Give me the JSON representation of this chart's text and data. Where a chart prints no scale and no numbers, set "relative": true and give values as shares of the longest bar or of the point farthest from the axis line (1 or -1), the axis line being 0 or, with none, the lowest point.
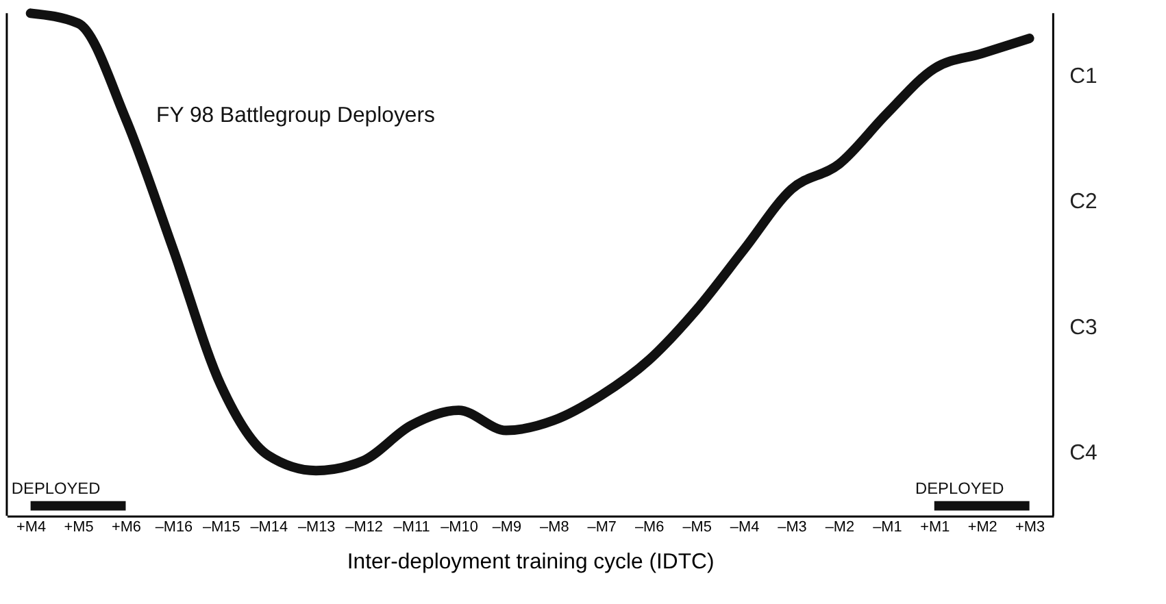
{
  "chart_data": {
    "type": "line",
    "relative": true,
    "xlabel": "Inter-deployment training cycle (IDTC)",
    "annotations": [
      "FY 98 Battlegroup Deployers",
      "C1",
      "C2",
      "C3",
      "C4"
    ],
    "categories": [
      "+M4",
      "+M5",
      "+M6",
      "–M16",
      "–M15",
      "–M14",
      "–M13",
      "–M12",
      "–M11",
      "–M10",
      "–M9",
      "–M8",
      "–M7",
      "–M6",
      "–M5",
      "–M4",
      "–M3",
      "–M2",
      "–M1",
      "+M1",
      "+M2",
      "+M3"
    ],
    "series": [
      {
        "color": "#111111",
        "values": [
          1.0,
          0.98,
          0.79,
          0.53,
          0.26,
          0.12,
          0.09,
          0.11,
          0.18,
          0.21,
          0.17,
          0.19,
          0.24,
          0.31,
          0.41,
          0.53,
          0.65,
          0.7,
          0.8,
          0.89,
          0.92,
          0.95
        ]
      },
      {
        "name": "DEPLOYED",
        "color": "#111111",
        "values": [
          0.02,
          0.02,
          0.02,
          null,
          null,
          null,
          null,
          null,
          null,
          null,
          null,
          null,
          null,
          null,
          null,
          null,
          null,
          null,
          null,
          null,
          null,
          null
        ]
      },
      {
        "name": "DEPLOYED",
        "color": "#111111",
        "values": [
          null,
          null,
          null,
          null,
          null,
          null,
          null,
          null,
          null,
          null,
          null,
          null,
          null,
          null,
          null,
          null,
          null,
          null,
          null,
          0.02,
          0.02,
          0.02
        ]
      }
    ],
    "line_style": "solid",
    "grid": false,
    "legend": false
  }
}
